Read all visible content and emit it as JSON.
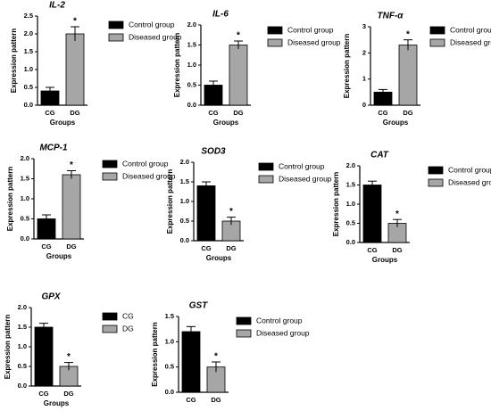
{
  "chart_data": [
    {
      "type": "bar",
      "title": "IL-2",
      "categories": [
        "CG",
        "DG"
      ],
      "values": [
        0.4,
        2.0
      ],
      "errors": [
        0.1,
        0.2
      ],
      "colors": [
        "#000000",
        "#a6a6a6"
      ],
      "legend": [
        "Control group",
        "Diseased group"
      ],
      "ylabel": "Expression pattern",
      "xlabel": "Groups",
      "ylim": [
        0,
        2.5
      ],
      "yticks": [
        {
          "value": 0,
          "label": "0.0"
        },
        0.5,
        {
          "value": 1,
          "label": "1.0"
        },
        1.5,
        {
          "value": 2,
          "label": "2.0"
        },
        2.5
      ],
      "annotations": [
        {
          "text": "*",
          "x": "DG"
        }
      ]
    },
    {
      "type": "bar",
      "title": "IL-6",
      "categories": [
        "CG",
        "DG"
      ],
      "values": [
        0.5,
        1.5
      ],
      "errors": [
        0.1,
        0.1
      ],
      "colors": [
        "#000000",
        "#a6a6a6"
      ],
      "legend": [
        "Control group",
        "Diseased group"
      ],
      "ylabel": "Expression pattern",
      "xlabel": "Groups",
      "ylim": [
        0,
        2
      ],
      "yticks": [
        {
          "value": 0,
          "label": "0.0"
        },
        0.5,
        {
          "value": 1,
          "label": "1.0"
        },
        1.5,
        {
          "value": 2,
          "label": "2.0"
        }
      ],
      "annotations": [
        {
          "text": "*",
          "x": "DG"
        }
      ]
    },
    {
      "type": "bar",
      "title": "TNF-α",
      "categories": [
        "CG",
        "DG"
      ],
      "values": [
        0.5,
        2.3
      ],
      "errors": [
        0.1,
        0.2
      ],
      "colors": [
        "#000000",
        "#a6a6a6"
      ],
      "legend": [
        "Control group",
        "Diseased group"
      ],
      "ylabel": "Expression pattern",
      "xlabel": "Groups",
      "ylim": [
        0,
        3
      ],
      "yticks": [
        0,
        1,
        2,
        3
      ],
      "annotations": [
        {
          "text": "*",
          "x": "DG"
        }
      ]
    },
    {
      "type": "bar",
      "title": "MCP-1",
      "categories": [
        "CG",
        "DG"
      ],
      "values": [
        0.5,
        1.6
      ],
      "errors": [
        0.1,
        0.1
      ],
      "colors": [
        "#000000",
        "#a6a6a6"
      ],
      "legend": [
        "Control group",
        "Diseased group"
      ],
      "ylabel": "Expression pattern",
      "xlabel": "Groups",
      "ylim": [
        0,
        2
      ],
      "yticks": [
        {
          "value": 0,
          "label": "0.0"
        },
        0.5,
        {
          "value": 1,
          "label": "1.0"
        },
        1.5,
        {
          "value": 2,
          "label": "2.0"
        }
      ],
      "annotations": [
        {
          "text": "*",
          "x": "DG"
        }
      ]
    },
    {
      "type": "bar",
      "title": "SOD3",
      "categories": [
        "CG",
        "DG"
      ],
      "values": [
        1.4,
        0.5
      ],
      "errors": [
        0.1,
        0.1
      ],
      "colors": [
        "#000000",
        "#a6a6a6"
      ],
      "legend": [
        "Control group",
        "Diseased group"
      ],
      "ylabel": "Expression pattern",
      "xlabel": "Groups",
      "ylim": [
        0,
        2
      ],
      "yticks": [
        {
          "value": 0,
          "label": "0.0"
        },
        0.5,
        {
          "value": 1,
          "label": "1.0"
        },
        1.5,
        {
          "value": 2,
          "label": "2.0"
        }
      ],
      "annotations": [
        {
          "text": "*",
          "x": "DG"
        }
      ]
    },
    {
      "type": "bar",
      "title": "CAT",
      "categories": [
        "CG",
        "DG"
      ],
      "values": [
        1.5,
        0.5
      ],
      "errors": [
        0.1,
        0.1
      ],
      "colors": [
        "#000000",
        "#a6a6a6"
      ],
      "legend": [
        "Control group",
        "Diseased group"
      ],
      "ylabel": "Expression pattern",
      "xlabel": "Groups",
      "ylim": [
        0,
        2
      ],
      "yticks": [
        {
          "value": 0,
          "label": "0.0"
        },
        0.5,
        {
          "value": 1,
          "label": "1.0"
        },
        1.5,
        {
          "value": 2,
          "label": "2.0"
        }
      ],
      "annotations": [
        {
          "text": "*",
          "x": "DG"
        }
      ]
    },
    {
      "type": "bar",
      "title": "GPX",
      "categories": [
        "CG",
        "DG"
      ],
      "values": [
        1.5,
        0.5
      ],
      "errors": [
        0.1,
        0.1
      ],
      "colors": [
        "#000000",
        "#a6a6a6"
      ],
      "legend": [
        "CG",
        "DG"
      ],
      "ylabel": "Expression pattern",
      "xlabel": "Groups",
      "ylim": [
        0,
        2
      ],
      "yticks": [
        {
          "value": 0,
          "label": "0.0"
        },
        0.5,
        {
          "value": 1,
          "label": "1.0"
        },
        1.5,
        {
          "value": 2,
          "label": "2.0"
        }
      ],
      "annotations": [
        {
          "text": "*",
          "x": "DG"
        }
      ]
    },
    {
      "type": "bar",
      "title": "GST",
      "categories": [
        "CG",
        "DG"
      ],
      "values": [
        1.2,
        0.5
      ],
      "errors": [
        0.1,
        0.1
      ],
      "colors": [
        "#000000",
        "#a6a6a6"
      ],
      "legend": [
        "Control group",
        "Diseased group"
      ],
      "ylabel": "Expression pattern",
      "ylim": [
        0,
        1.5
      ],
      "yticks": [
        {
          "value": 0,
          "label": "0.0"
        },
        0.5,
        {
          "value": 1,
          "label": "1.0"
        },
        1.5
      ],
      "annotations": [
        {
          "text": "*",
          "x": "DG"
        }
      ]
    }
  ]
}
